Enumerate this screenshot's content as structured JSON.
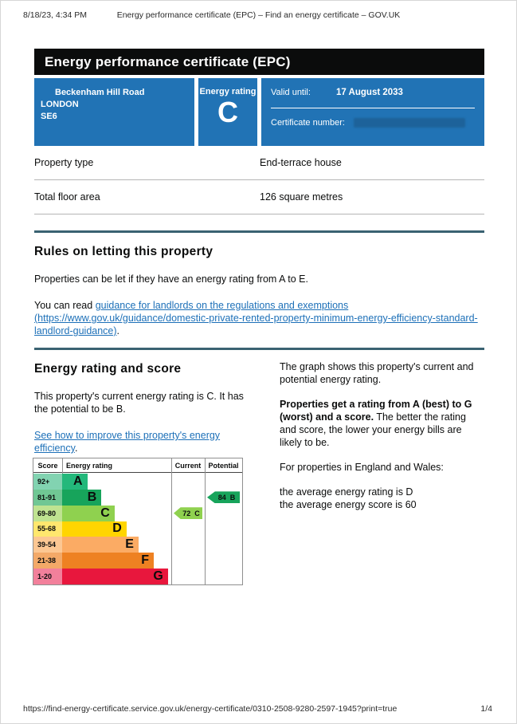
{
  "print_header": {
    "datetime": "8/18/23, 4:34 PM",
    "title": "Energy performance certificate (EPC) – Find an energy certificate – GOV.UK"
  },
  "banner": {
    "title": "Energy performance certificate (EPC)"
  },
  "summary": {
    "address": {
      "line1": "Beckenham Hill Road",
      "line2": "LONDON",
      "line3": "SE6"
    },
    "rating_label": "Energy rating",
    "rating": "C",
    "valid_until_label": "Valid until:",
    "valid_until": "17 August 2033",
    "certificate_number_label": "Certificate number:"
  },
  "properties": {
    "row1": {
      "label": "Property type",
      "value": "End-terrace house"
    },
    "row2": {
      "label": "Total floor area",
      "value": "126 square metres"
    }
  },
  "rules": {
    "heading": "Rules on letting this property",
    "p1": "Properties can be let if they have an energy rating from A to E.",
    "p2_prefix": "You can read ",
    "p2_link": "guidance for landlords on the regulations and exemptions (https://www.gov.uk/guidance/domestic-private-rented-property-minimum-energy-efficiency-standard-landlord-guidance)",
    "p2_suffix": "."
  },
  "rating_section": {
    "heading": "Energy rating and score",
    "p1": "This property's current energy rating is C. It has the potential to be B.",
    "link": "See how to improve this property's energy efficiency",
    "link_suffix": ".",
    "right_p1": "The graph shows this property's current and potential energy rating.",
    "right_p2_bold": "Properties get a rating from A (best) to G (worst) and a score.",
    "right_p2_rest": " The better the rating and score, the lower your energy bills are likely to be.",
    "right_p3": "For properties in England and Wales:",
    "right_p4_line1": "the average energy rating is D",
    "right_p4_line2": "the average energy score is 60"
  },
  "chart_data": {
    "type": "bar",
    "title": "Energy rating and score chart",
    "columns": [
      "Score",
      "Energy rating",
      "Current",
      "Potential"
    ],
    "bands": [
      {
        "score_range": "92+",
        "letter": "A",
        "color": "#23b87b",
        "tint": "#82d3b1",
        "bar_pct": 23
      },
      {
        "score_range": "81-91",
        "letter": "B",
        "color": "#17a45b",
        "tint": "#70c794",
        "bar_pct": 36
      },
      {
        "score_range": "69-80",
        "letter": "C",
        "color": "#8fd14f",
        "tint": "#bfe391",
        "bar_pct": 48
      },
      {
        "score_range": "55-68",
        "letter": "D",
        "color": "#ffd500",
        "tint": "#ffe76e",
        "bar_pct": 59
      },
      {
        "score_range": "39-54",
        "letter": "E",
        "color": "#fbab64",
        "tint": "#fcc793",
        "bar_pct": 70
      },
      {
        "score_range": "21-38",
        "letter": "F",
        "color": "#ee8122",
        "tint": "#f3a968",
        "bar_pct": 84
      },
      {
        "score_range": "1-20",
        "letter": "G",
        "color": "#e8173d",
        "tint": "#f2809b",
        "bar_pct": 97
      }
    ],
    "current": {
      "score": "72",
      "letter": "C",
      "color": "#8fd14f"
    },
    "potential": {
      "score": "84",
      "letter": "B",
      "color": "#17a45b"
    }
  },
  "print_footer": {
    "url": "https://find-energy-certificate.service.gov.uk/energy-certificate/0310-2508-9280-2597-1945?print=true",
    "page": "1/4"
  }
}
